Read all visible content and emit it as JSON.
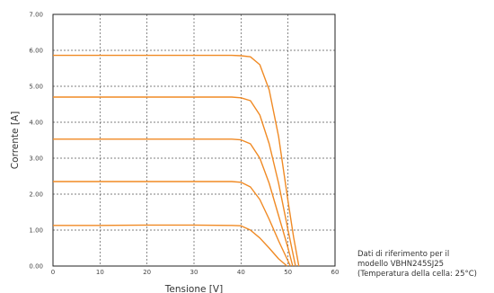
{
  "chart_data": {
    "type": "line",
    "xlabel": "Tensione [V]",
    "ylabel": "Corrente [A]",
    "xlim": [
      0,
      60
    ],
    "ylim": [
      0,
      7
    ],
    "x_ticks": [
      "0",
      "10",
      "20",
      "30",
      "40",
      "50",
      "60"
    ],
    "y_ticks": [
      "0.00",
      "1.00",
      "2.00",
      "3.00",
      "4.00",
      "5.00",
      "6.00",
      "7.00"
    ],
    "grid": true,
    "line_color": "#f08a24",
    "series": [
      {
        "x": [
          0,
          5,
          10,
          20,
          30,
          38,
          40,
          42,
          44,
          46,
          48,
          50,
          51.2,
          52.3
        ],
        "y": [
          5.86,
          5.86,
          5.86,
          5.86,
          5.86,
          5.86,
          5.85,
          5.82,
          5.6,
          4.9,
          3.6,
          1.8,
          0.8,
          0
        ]
      },
      {
        "x": [
          0,
          5,
          10,
          20,
          30,
          38,
          40,
          42,
          44,
          46,
          48,
          50,
          51.6
        ],
        "y": [
          4.7,
          4.7,
          4.7,
          4.7,
          4.7,
          4.7,
          4.68,
          4.6,
          4.2,
          3.4,
          2.3,
          1.0,
          0
        ]
      },
      {
        "x": [
          0,
          5,
          10,
          20,
          30,
          38,
          40,
          42,
          44,
          46,
          48,
          50,
          51.0
        ],
        "y": [
          3.53,
          3.53,
          3.53,
          3.53,
          3.53,
          3.53,
          3.51,
          3.4,
          3.0,
          2.3,
          1.4,
          0.5,
          0
        ]
      },
      {
        "x": [
          0,
          5,
          10,
          20,
          30,
          38,
          40,
          42,
          44,
          46,
          48,
          50.5
        ],
        "y": [
          2.35,
          2.35,
          2.35,
          2.35,
          2.35,
          2.35,
          2.33,
          2.2,
          1.85,
          1.3,
          0.7,
          0
        ]
      },
      {
        "x": [
          0,
          5,
          10,
          20,
          30,
          38,
          40,
          42,
          44,
          46,
          48,
          49.8
        ],
        "y": [
          1.13,
          1.13,
          1.13,
          1.14,
          1.14,
          1.13,
          1.12,
          1.0,
          0.78,
          0.5,
          0.2,
          0
        ]
      }
    ]
  },
  "note": {
    "line1": "Dati di riferimento per il",
    "line2": "modello VBHN245SJ25",
    "line3": "(Temperatura della cella: 25°C)"
  }
}
